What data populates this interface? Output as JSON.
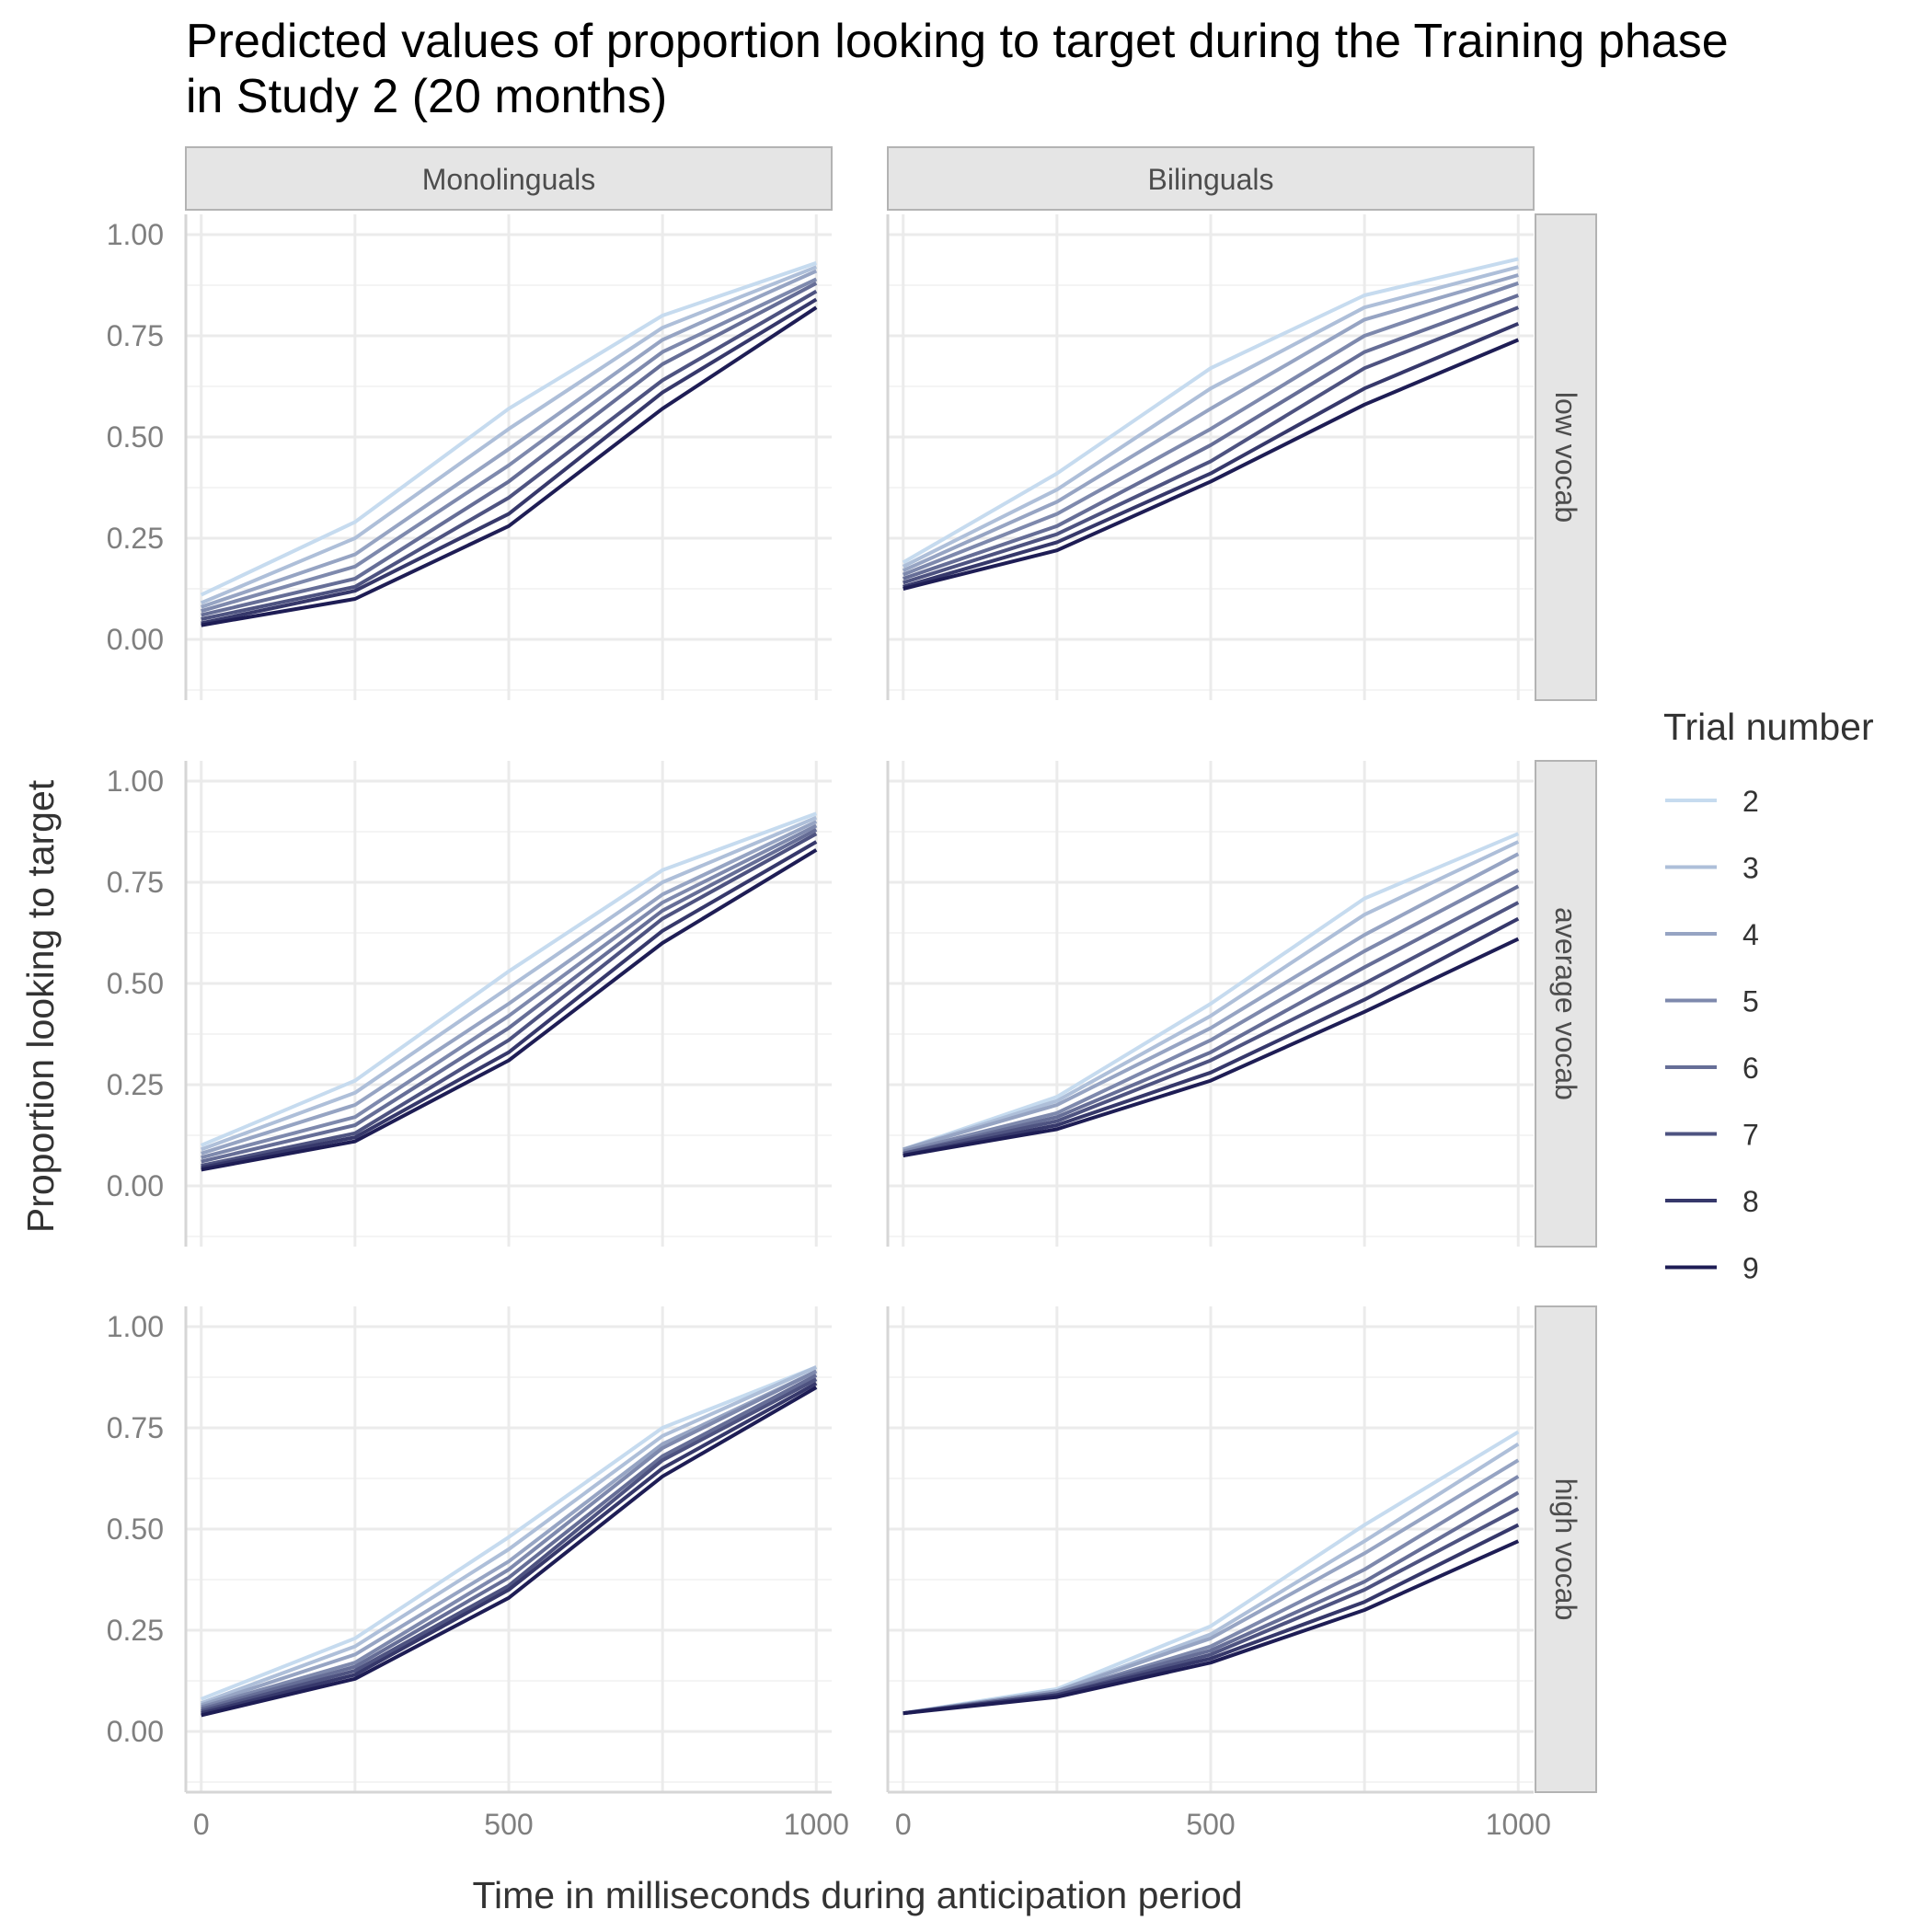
{
  "chart_data": {
    "type": "line",
    "title_line1": "Predicted values of proportion looking to target during the Training phase",
    "title_line2": "in Study 2 (20 months)",
    "xlabel": "Time in milliseconds during anticipation period",
    "ylabel": "Proportion looking to target",
    "xlim": [
      -25,
      1025
    ],
    "ylim": [
      -0.15,
      1.05
    ],
    "x_ticks": [
      "0",
      "500",
      "1000"
    ],
    "y_ticks": [
      "0.00",
      "0.25",
      "0.50",
      "0.75",
      "1.00"
    ],
    "grid": true,
    "legend": {
      "title": "Trial number",
      "position": "right"
    },
    "columns": [
      "Monolinguals",
      "Bilinguals"
    ],
    "rows": [
      "low vocab",
      "average vocab",
      "high vocab"
    ],
    "x": [
      0,
      250,
      500,
      750,
      1000
    ],
    "series_names": [
      "2",
      "3",
      "4",
      "5",
      "6",
      "7",
      "8",
      "9"
    ],
    "series_colors": [
      "#c6dbef",
      "#aebfd9",
      "#96a4c3",
      "#7e89ad",
      "#666e97",
      "#4e5381",
      "#36386b",
      "#1e1d55"
    ],
    "panels": [
      {
        "row": "low vocab",
        "column": "Monolinguals",
        "series": [
          {
            "name": "2",
            "values": [
              0.11,
              0.29,
              0.57,
              0.8,
              0.93
            ]
          },
          {
            "name": "3",
            "values": [
              0.09,
              0.25,
              0.52,
              0.77,
              0.92
            ]
          },
          {
            "name": "4",
            "values": [
              0.08,
              0.21,
              0.47,
              0.74,
              0.91
            ]
          },
          {
            "name": "5",
            "values": [
              0.07,
              0.18,
              0.43,
              0.71,
              0.89
            ]
          },
          {
            "name": "6",
            "values": [
              0.06,
              0.15,
              0.39,
              0.68,
              0.88
            ]
          },
          {
            "name": "7",
            "values": [
              0.05,
              0.13,
              0.35,
              0.64,
              0.86
            ]
          },
          {
            "name": "8",
            "values": [
              0.04,
              0.12,
              0.31,
              0.61,
              0.84
            ]
          },
          {
            "name": "9",
            "values": [
              0.035,
              0.1,
              0.28,
              0.57,
              0.82
            ]
          }
        ]
      },
      {
        "row": "low vocab",
        "column": "Bilinguals",
        "series": [
          {
            "name": "2",
            "values": [
              0.19,
              0.41,
              0.67,
              0.85,
              0.94
            ]
          },
          {
            "name": "3",
            "values": [
              0.18,
              0.37,
              0.62,
              0.82,
              0.92
            ]
          },
          {
            "name": "4",
            "values": [
              0.17,
              0.34,
              0.57,
              0.79,
              0.9
            ]
          },
          {
            "name": "5",
            "values": [
              0.16,
              0.31,
              0.52,
              0.75,
              0.88
            ]
          },
          {
            "name": "6",
            "values": [
              0.15,
              0.28,
              0.48,
              0.71,
              0.85
            ]
          },
          {
            "name": "7",
            "values": [
              0.14,
              0.26,
              0.44,
              0.67,
              0.82
            ]
          },
          {
            "name": "8",
            "values": [
              0.13,
              0.24,
              0.41,
              0.62,
              0.78
            ]
          },
          {
            "name": "9",
            "values": [
              0.125,
              0.22,
              0.39,
              0.58,
              0.74
            ]
          }
        ]
      },
      {
        "row": "average vocab",
        "column": "Monolinguals",
        "series": [
          {
            "name": "2",
            "values": [
              0.1,
              0.26,
              0.53,
              0.78,
              0.92
            ]
          },
          {
            "name": "3",
            "values": [
              0.09,
              0.23,
              0.49,
              0.75,
              0.91
            ]
          },
          {
            "name": "4",
            "values": [
              0.08,
              0.2,
              0.45,
              0.72,
              0.9
            ]
          },
          {
            "name": "5",
            "values": [
              0.07,
              0.17,
              0.42,
              0.7,
              0.89
            ]
          },
          {
            "name": "6",
            "values": [
              0.06,
              0.15,
              0.39,
              0.68,
              0.88
            ]
          },
          {
            "name": "7",
            "values": [
              0.05,
              0.13,
              0.36,
              0.66,
              0.87
            ]
          },
          {
            "name": "8",
            "values": [
              0.045,
              0.12,
              0.33,
              0.63,
              0.85
            ]
          },
          {
            "name": "9",
            "values": [
              0.04,
              0.11,
              0.31,
              0.6,
              0.83
            ]
          }
        ]
      },
      {
        "row": "average vocab",
        "column": "Bilinguals",
        "series": [
          {
            "name": "2",
            "values": [
              0.09,
              0.22,
              0.45,
              0.71,
              0.87
            ]
          },
          {
            "name": "3",
            "values": [
              0.09,
              0.21,
              0.42,
              0.67,
              0.85
            ]
          },
          {
            "name": "4",
            "values": [
              0.09,
              0.2,
              0.39,
              0.62,
              0.82
            ]
          },
          {
            "name": "5",
            "values": [
              0.085,
              0.18,
              0.36,
              0.58,
              0.78
            ]
          },
          {
            "name": "6",
            "values": [
              0.08,
              0.17,
              0.33,
              0.54,
              0.74
            ]
          },
          {
            "name": "7",
            "values": [
              0.08,
              0.16,
              0.31,
              0.5,
              0.7
            ]
          },
          {
            "name": "8",
            "values": [
              0.075,
              0.15,
              0.28,
              0.46,
              0.66
            ]
          },
          {
            "name": "9",
            "values": [
              0.075,
              0.14,
              0.26,
              0.43,
              0.61
            ]
          }
        ]
      },
      {
        "row": "high vocab",
        "column": "Monolinguals",
        "series": [
          {
            "name": "2",
            "values": [
              0.08,
              0.23,
              0.48,
              0.75,
              0.9
            ]
          },
          {
            "name": "3",
            "values": [
              0.07,
              0.21,
              0.45,
              0.73,
              0.9
            ]
          },
          {
            "name": "4",
            "values": [
              0.065,
              0.19,
              0.42,
              0.71,
              0.89
            ]
          },
          {
            "name": "5",
            "values": [
              0.06,
              0.17,
              0.4,
              0.7,
              0.89
            ]
          },
          {
            "name": "6",
            "values": [
              0.055,
              0.16,
              0.38,
              0.68,
              0.88
            ]
          },
          {
            "name": "7",
            "values": [
              0.05,
              0.15,
              0.36,
              0.67,
              0.87
            ]
          },
          {
            "name": "8",
            "values": [
              0.045,
              0.14,
              0.35,
              0.65,
              0.86
            ]
          },
          {
            "name": "9",
            "values": [
              0.04,
              0.13,
              0.33,
              0.63,
              0.85
            ]
          }
        ]
      },
      {
        "row": "high vocab",
        "column": "Bilinguals",
        "series": [
          {
            "name": "2",
            "values": [
              0.045,
              0.105,
              0.26,
              0.51,
              0.74
            ]
          },
          {
            "name": "3",
            "values": [
              0.045,
              0.1,
              0.24,
              0.47,
              0.71
            ]
          },
          {
            "name": "4",
            "values": [
              0.045,
              0.1,
              0.23,
              0.44,
              0.67
            ]
          },
          {
            "name": "5",
            "values": [
              0.045,
              0.095,
              0.21,
              0.4,
              0.63
            ]
          },
          {
            "name": "6",
            "values": [
              0.045,
              0.095,
              0.2,
              0.37,
              0.59
            ]
          },
          {
            "name": "7",
            "values": [
              0.045,
              0.09,
              0.19,
              0.35,
              0.55
            ]
          },
          {
            "name": "8",
            "values": [
              0.045,
              0.09,
              0.18,
              0.32,
              0.51
            ]
          },
          {
            "name": "9",
            "values": [
              0.045,
              0.085,
              0.17,
              0.3,
              0.47
            ]
          }
        ]
      }
    ]
  }
}
